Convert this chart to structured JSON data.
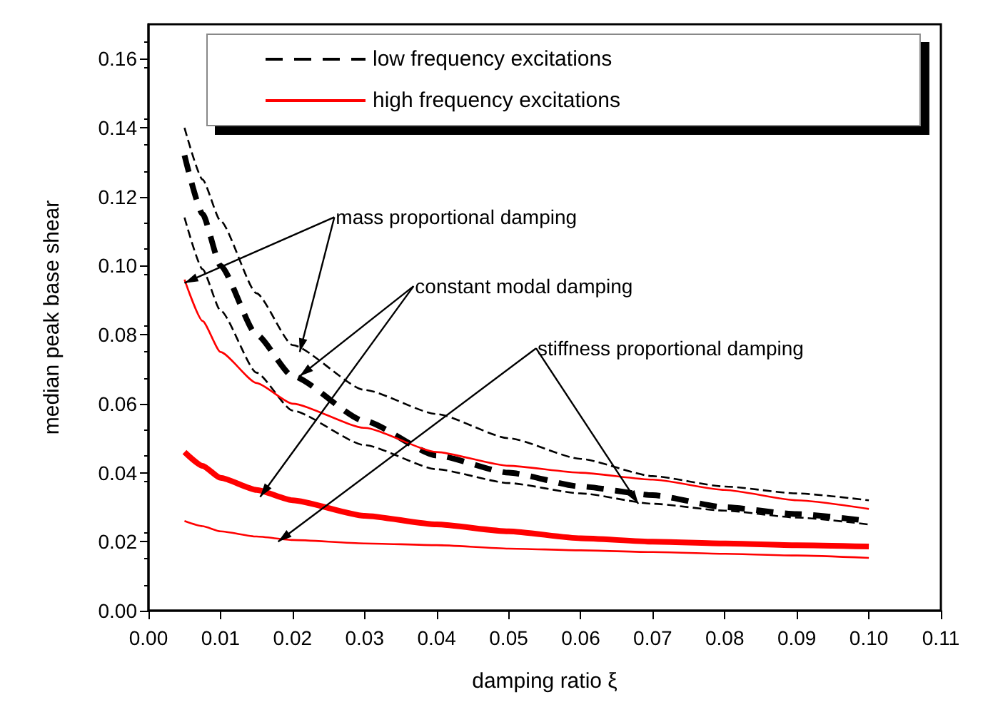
{
  "chart_data": {
    "type": "line",
    "xlabel": "damping ratio ξ",
    "ylabel": "median peak base shear",
    "x": [
      0.005,
      0.0075,
      0.01,
      0.015,
      0.02,
      0.03,
      0.04,
      0.05,
      0.06,
      0.07,
      0.08,
      0.09,
      0.1
    ],
    "xlim": [
      0,
      0.11
    ],
    "xticks": [
      {
        "value": 0,
        "label": "0.00"
      },
      0.01,
      0.02,
      0.03,
      0.04,
      0.05,
      0.06,
      0.07,
      0.08,
      0.09,
      {
        "value": 0.1,
        "label": "0.10"
      },
      0.11
    ],
    "ylim": [
      0,
      0.17
    ],
    "yticks": [
      {
        "value": 0,
        "label": "0.00"
      },
      0.02,
      0.04,
      0.06,
      0.08,
      {
        "value": 0.1,
        "label": "0.10"
      },
      0.12,
      0.14,
      0.16
    ],
    "series": [
      {
        "color": "#000000",
        "line_style": "dashed",
        "values": [
          0.14,
          0.125,
          0.113,
          0.092,
          0.077,
          0.064,
          0.057,
          0.05,
          0.044,
          0.039,
          0.036,
          0.034,
          0.032
        ]
      },
      {
        "name": "low frequency excitations",
        "color": "#000000",
        "line_style": "dashed",
        "values": [
          0.132,
          0.115,
          0.1,
          0.08,
          0.068,
          0.055,
          0.045,
          0.04,
          0.036,
          0.0335,
          0.03,
          0.028,
          0.026
        ]
      },
      {
        "color": "#000000",
        "line_style": "dashed",
        "values": [
          0.114,
          0.099,
          0.087,
          0.069,
          0.058,
          0.048,
          0.041,
          0.037,
          0.034,
          0.031,
          0.029,
          0.027,
          0.025
        ]
      },
      {
        "color": "#ff0000",
        "line_style": "solid",
        "values": [
          0.096,
          0.084,
          0.075,
          0.066,
          0.06,
          0.053,
          0.046,
          0.042,
          0.04,
          0.038,
          0.035,
          0.032,
          0.0295
        ]
      },
      {
        "name": "high frequency excitations",
        "color": "#ff0000",
        "line_style": "solid",
        "values": [
          0.046,
          0.042,
          0.0385,
          0.035,
          0.032,
          0.0275,
          0.025,
          0.023,
          0.021,
          0.02,
          0.0195,
          0.019,
          0.0186
        ]
      },
      {
        "color": "#ff0000",
        "line_style": "solid",
        "values": [
          0.026,
          0.0245,
          0.023,
          0.0215,
          0.0205,
          0.0195,
          0.019,
          0.018,
          0.0175,
          0.017,
          0.0165,
          0.016,
          0.0153
        ]
      }
    ],
    "annotations": [
      {
        "text": "mass proportional damping",
        "x": 0.005,
        "y": 0.095
      },
      {
        "text": "constant modal damping",
        "x": 0.021,
        "y": 0.068
      },
      {
        "text": "stiffness proportional damping",
        "x": 0.018,
        "y": 0.02
      }
    ],
    "legend": "top",
    "grid": false,
    "marker": "none"
  }
}
